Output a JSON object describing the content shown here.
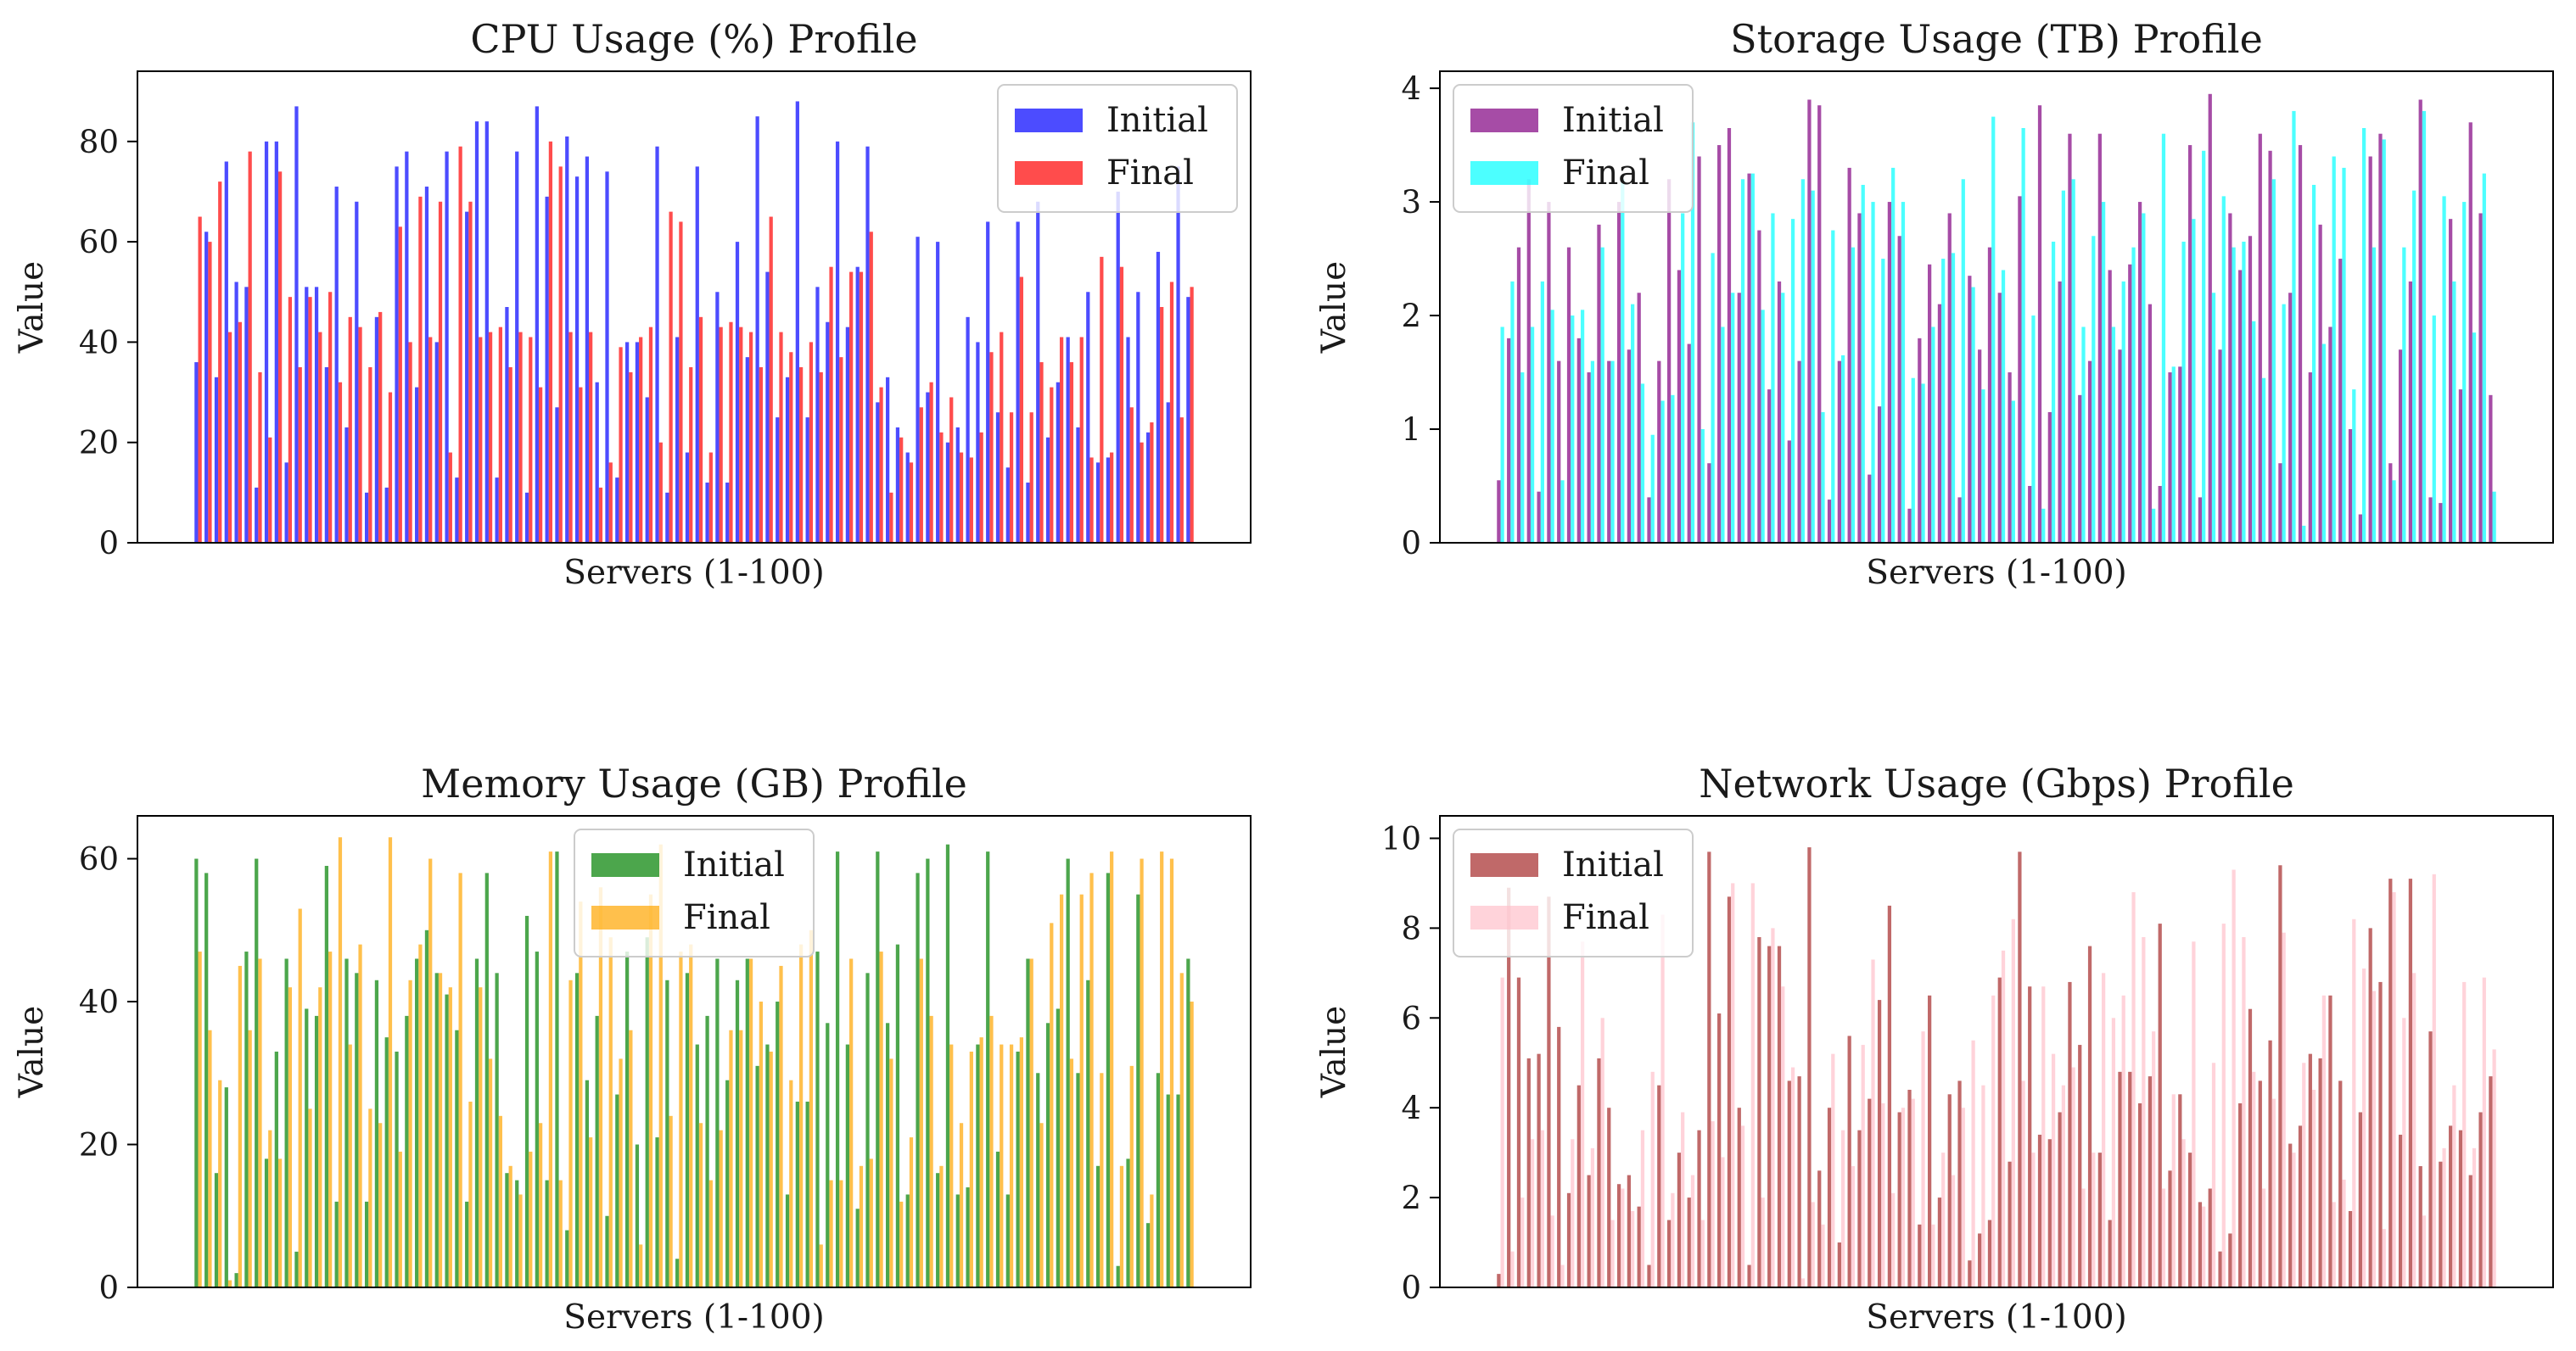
{
  "chart_data": [
    {
      "type": "bar",
      "title": "CPU Usage (%) Profile",
      "xlabel": "Servers (1-100)",
      "ylabel": "Value",
      "ylim": [
        0,
        94
      ],
      "yticks": [
        "0",
        "20",
        "40",
        "60",
        "80"
      ],
      "legend_position": "top-right",
      "categories_note": "Servers 1-100, no x tick labels",
      "series": [
        {
          "name": "Initial",
          "color": "#0000ff",
          "values": [
            36,
            62,
            33,
            76,
            52,
            51,
            11,
            80,
            80,
            16,
            87,
            51,
            51,
            35,
            71,
            23,
            68,
            10,
            45,
            11,
            75,
            78,
            31,
            71,
            40,
            78,
            13,
            66,
            84,
            84,
            13,
            47,
            78,
            10,
            87,
            69,
            27,
            81,
            73,
            77,
            32,
            74,
            13,
            40,
            40,
            29,
            79,
            10,
            41,
            18,
            75,
            12,
            50,
            12,
            60,
            37,
            85,
            54,
            25,
            33,
            88,
            25,
            51,
            44,
            80,
            43,
            55,
            79,
            28,
            33,
            23,
            18,
            61,
            30,
            60,
            20,
            23,
            45,
            40,
            64,
            26,
            15,
            64,
            12,
            68,
            21,
            32,
            41,
            23,
            50,
            16,
            17,
            70,
            41,
            50,
            22,
            58,
            28,
            75,
            49
          ]
        },
        {
          "name": "Final",
          "color": "#ff0000",
          "values": [
            65,
            60,
            72,
            42,
            44,
            78,
            34,
            21,
            74,
            49,
            35,
            49,
            42,
            50,
            32,
            45,
            43,
            35,
            46,
            30,
            63,
            40,
            69,
            41,
            68,
            18,
            79,
            68,
            41,
            42,
            43,
            35,
            42,
            41,
            31,
            80,
            75,
            42,
            31,
            42,
            11,
            16,
            39,
            34,
            41,
            43,
            20,
            66,
            64,
            35,
            45,
            18,
            43,
            44,
            43,
            42,
            35,
            65,
            42,
            38,
            35,
            40,
            34,
            55,
            37,
            54,
            54,
            62,
            31,
            10,
            21,
            16,
            27,
            32,
            22,
            29,
            18,
            17,
            22,
            38,
            42,
            26,
            53,
            26,
            36,
            31,
            41,
            36,
            41,
            17,
            57,
            18,
            55,
            27,
            20,
            24,
            47,
            52,
            25,
            51
          ]
        }
      ]
    },
    {
      "type": "bar",
      "title": "Storage Usage (TB) Profile",
      "xlabel": "Servers (1-100)",
      "ylabel": "Value",
      "ylim": [
        0,
        4.15
      ],
      "yticks": [
        "0",
        "1",
        "2",
        "3",
        "4"
      ],
      "legend_position": "top-left",
      "categories_note": "Servers 1-100, no x tick labels",
      "series": [
        {
          "name": "Initial",
          "color": "#800080",
          "values": [
            0.55,
            1.8,
            2.6,
            3.2,
            0.45,
            3.0,
            1.6,
            2.6,
            1.8,
            1.5,
            2.8,
            1.6,
            3.0,
            1.7,
            2.2,
            0.4,
            1.6,
            3.2,
            2.4,
            1.75,
            3.4,
            0.7,
            3.5,
            3.65,
            2.2,
            3.25,
            2.75,
            1.35,
            2.3,
            0.9,
            1.6,
            3.9,
            3.85,
            0.38,
            1.6,
            3.3,
            2.9,
            0.6,
            1.2,
            3.0,
            2.7,
            0.3,
            1.8,
            2.45,
            2.1,
            2.9,
            0.4,
            2.35,
            1.7,
            2.6,
            2.2,
            1.5,
            3.05,
            0.5,
            3.85,
            1.15,
            2.3,
            3.6,
            1.3,
            1.6,
            3.6,
            2.4,
            1.7,
            2.45,
            3.0,
            2.1,
            0.5,
            1.5,
            1.55,
            3.5,
            0.4,
            3.95,
            1.7,
            2.9,
            2.4,
            2.7,
            3.6,
            3.45,
            0.7,
            2.2,
            3.5,
            1.5,
            2.8,
            1.9,
            2.5,
            1.0,
            0.25,
            3.4,
            3.6,
            0.7,
            1.7,
            2.3,
            3.9,
            0.4,
            0.35,
            2.85,
            1.35,
            3.7,
            2.9,
            1.3
          ]
        },
        {
          "name": "Final",
          "color": "#00ffff",
          "values": [
            1.9,
            2.3,
            1.5,
            1.9,
            2.3,
            2.05,
            0.55,
            2.0,
            2.05,
            1.6,
            2.6,
            1.6,
            3.2,
            2.1,
            1.4,
            0.95,
            1.25,
            1.3,
            2.9,
            3.7,
            1.0,
            2.55,
            1.9,
            2.2,
            3.2,
            3.25,
            2.05,
            2.9,
            2.2,
            2.85,
            3.2,
            3.1,
            1.15,
            2.75,
            1.65,
            2.6,
            3.15,
            3.0,
            2.5,
            3.3,
            3.0,
            1.45,
            1.4,
            1.9,
            2.5,
            2.55,
            3.2,
            2.25,
            1.35,
            3.75,
            2.4,
            1.25,
            3.65,
            2.0,
            0.3,
            2.65,
            3.1,
            3.2,
            1.9,
            2.7,
            3.0,
            1.9,
            2.3,
            2.6,
            2.9,
            0.3,
            3.6,
            1.55,
            2.65,
            2.85,
            3.45,
            2.2,
            3.05,
            2.6,
            2.65,
            1.95,
            1.45,
            3.2,
            2.1,
            3.8,
            0.15,
            3.15,
            1.75,
            3.4,
            3.3,
            1.35,
            3.65,
            2.6,
            3.55,
            0.55,
            2.6,
            3.1,
            3.8,
            2.0,
            3.05,
            2.3,
            3.0,
            1.85,
            3.25,
            0.45
          ]
        }
      ]
    },
    {
      "type": "bar",
      "title": "Memory Usage (GB) Profile",
      "xlabel": "Servers (1-100)",
      "ylabel": "Value",
      "ylim": [
        0,
        66
      ],
      "yticks": [
        "0",
        "20",
        "40",
        "60"
      ],
      "legend_position": "top-center",
      "categories_note": "Servers 1-100, no x tick labels",
      "series": [
        {
          "name": "Initial",
          "color": "#008000",
          "values": [
            60,
            58,
            16,
            28,
            2,
            47,
            60,
            18,
            33,
            46,
            5,
            39,
            38,
            59,
            12,
            46,
            44,
            12,
            43,
            35,
            33,
            38,
            46,
            50,
            44,
            41,
            36,
            12,
            46,
            58,
            44,
            16,
            15,
            52,
            47,
            15,
            61,
            8,
            44,
            29,
            38,
            10,
            27,
            47,
            20,
            49,
            21,
            43,
            4,
            44,
            34,
            38,
            46,
            29,
            43,
            46,
            31,
            34,
            40,
            13,
            26,
            26,
            47,
            37,
            61,
            34,
            11,
            44,
            61,
            37,
            48,
            13,
            58,
            60,
            16,
            62,
            13,
            14,
            34,
            61,
            19,
            13,
            33,
            46,
            30,
            37,
            39,
            60,
            30,
            43,
            17,
            58,
            3,
            18,
            55,
            9,
            30,
            27,
            27,
            46
          ]
        },
        {
          "name": "Final",
          "color": "#ffa500",
          "values": [
            47,
            36,
            29,
            1,
            45,
            36,
            46,
            22,
            18,
            42,
            53,
            25,
            42,
            47,
            63,
            34,
            48,
            25,
            23,
            63,
            19,
            43,
            48,
            60,
            44,
            42,
            58,
            26,
            42,
            32,
            24,
            17,
            13,
            19,
            23,
            61,
            15,
            43,
            54,
            21,
            56,
            49,
            32,
            36,
            6,
            55,
            62,
            24,
            47,
            48,
            23,
            15,
            22,
            36,
            36,
            46,
            40,
            33,
            45,
            29,
            48,
            50,
            6,
            15,
            15,
            46,
            17,
            18,
            47,
            32,
            12,
            21,
            46,
            38,
            17,
            34,
            23,
            33,
            35,
            38,
            34,
            34,
            35,
            46,
            23,
            51,
            55,
            32,
            55,
            58,
            30,
            61,
            17,
            31,
            60,
            13,
            61,
            60,
            44,
            40
          ]
        }
      ]
    },
    {
      "type": "bar",
      "title": "Network Usage (Gbps) Profile",
      "xlabel": "Servers (1-100)",
      "ylabel": "Value",
      "ylim": [
        0,
        10.5
      ],
      "yticks": [
        "0",
        "2",
        "4",
        "6",
        "8",
        "10"
      ],
      "legend_position": "top-left",
      "categories_note": "Servers 1-100, no x tick labels",
      "series": [
        {
          "name": "Initial",
          "color": "#a52a2a",
          "values": [
            0.3,
            8.9,
            6.9,
            5.1,
            5.2,
            8.7,
            5.8,
            2.1,
            4.5,
            2.5,
            5.1,
            4.0,
            2.3,
            2.5,
            1.8,
            0.5,
            4.5,
            1.5,
            3.0,
            2.0,
            3.5,
            9.7,
            6.1,
            8.7,
            4.0,
            0.5,
            7.8,
            7.6,
            7.6,
            4.6,
            4.7,
            9.8,
            2.6,
            4.0,
            1.0,
            5.6,
            3.5,
            4.2,
            6.4,
            8.5,
            3.9,
            4.4,
            1.4,
            6.5,
            2.0,
            4.3,
            4.6,
            0.6,
            1.2,
            1.5,
            6.9,
            2.8,
            9.7,
            6.7,
            3.4,
            3.3,
            3.9,
            6.8,
            5.4,
            7.6,
            3.0,
            1.5,
            4.8,
            4.8,
            4.1,
            4.7,
            8.1,
            2.6,
            4.3,
            3.0,
            1.9,
            2.2,
            0.8,
            1.2,
            4.1,
            6.2,
            4.6,
            5.5,
            9.4,
            3.2,
            3.6,
            5.2,
            5.1,
            6.5,
            4.6,
            1.7,
            3.9,
            8.0,
            6.8,
            9.1,
            3.4,
            9.1,
            2.7,
            5.7,
            2.8,
            3.6,
            3.5,
            2.5,
            3.9,
            4.7
          ]
        },
        {
          "name": "Final",
          "color": "#ffc0cb",
          "values": [
            6.9,
            0.8,
            2.0,
            3.3,
            3.5,
            1.6,
            0.5,
            3.3,
            7.7,
            3.1,
            6.0,
            1.5,
            2.2,
            1.7,
            3.5,
            4.8,
            8.3,
            2.1,
            3.9,
            2.5,
            1.5,
            3.7,
            2.9,
            9.0,
            3.6,
            9.0,
            2.0,
            8.0,
            6.7,
            4.9,
            0.2,
            1.9,
            1.4,
            5.2,
            3.5,
            2.7,
            5.4,
            7.3,
            4.1,
            2.1,
            4.0,
            4.2,
            5.7,
            1.4,
            3.0,
            2.5,
            4.0,
            5.5,
            4.5,
            6.5,
            7.5,
            8.2,
            4.6,
            3.0,
            6.7,
            5.2,
            4.5,
            4.9,
            2.2,
            3.0,
            7.0,
            6.0,
            6.5,
            8.8,
            7.8,
            5.7,
            2.2,
            4.3,
            3.3,
            7.7,
            1.8,
            5.0,
            8.1,
            9.3,
            7.8,
            4.8,
            2.2,
            4.2,
            7.9,
            3.0,
            5.0,
            4.4,
            6.5,
            1.9,
            2.4,
            8.2,
            7.1,
            6.6,
            1.3,
            8.8,
            6.0,
            7.0,
            1.6,
            9.2,
            3.1,
            4.5,
            6.8,
            3.1,
            6.9,
            5.3
          ]
        }
      ]
    }
  ]
}
